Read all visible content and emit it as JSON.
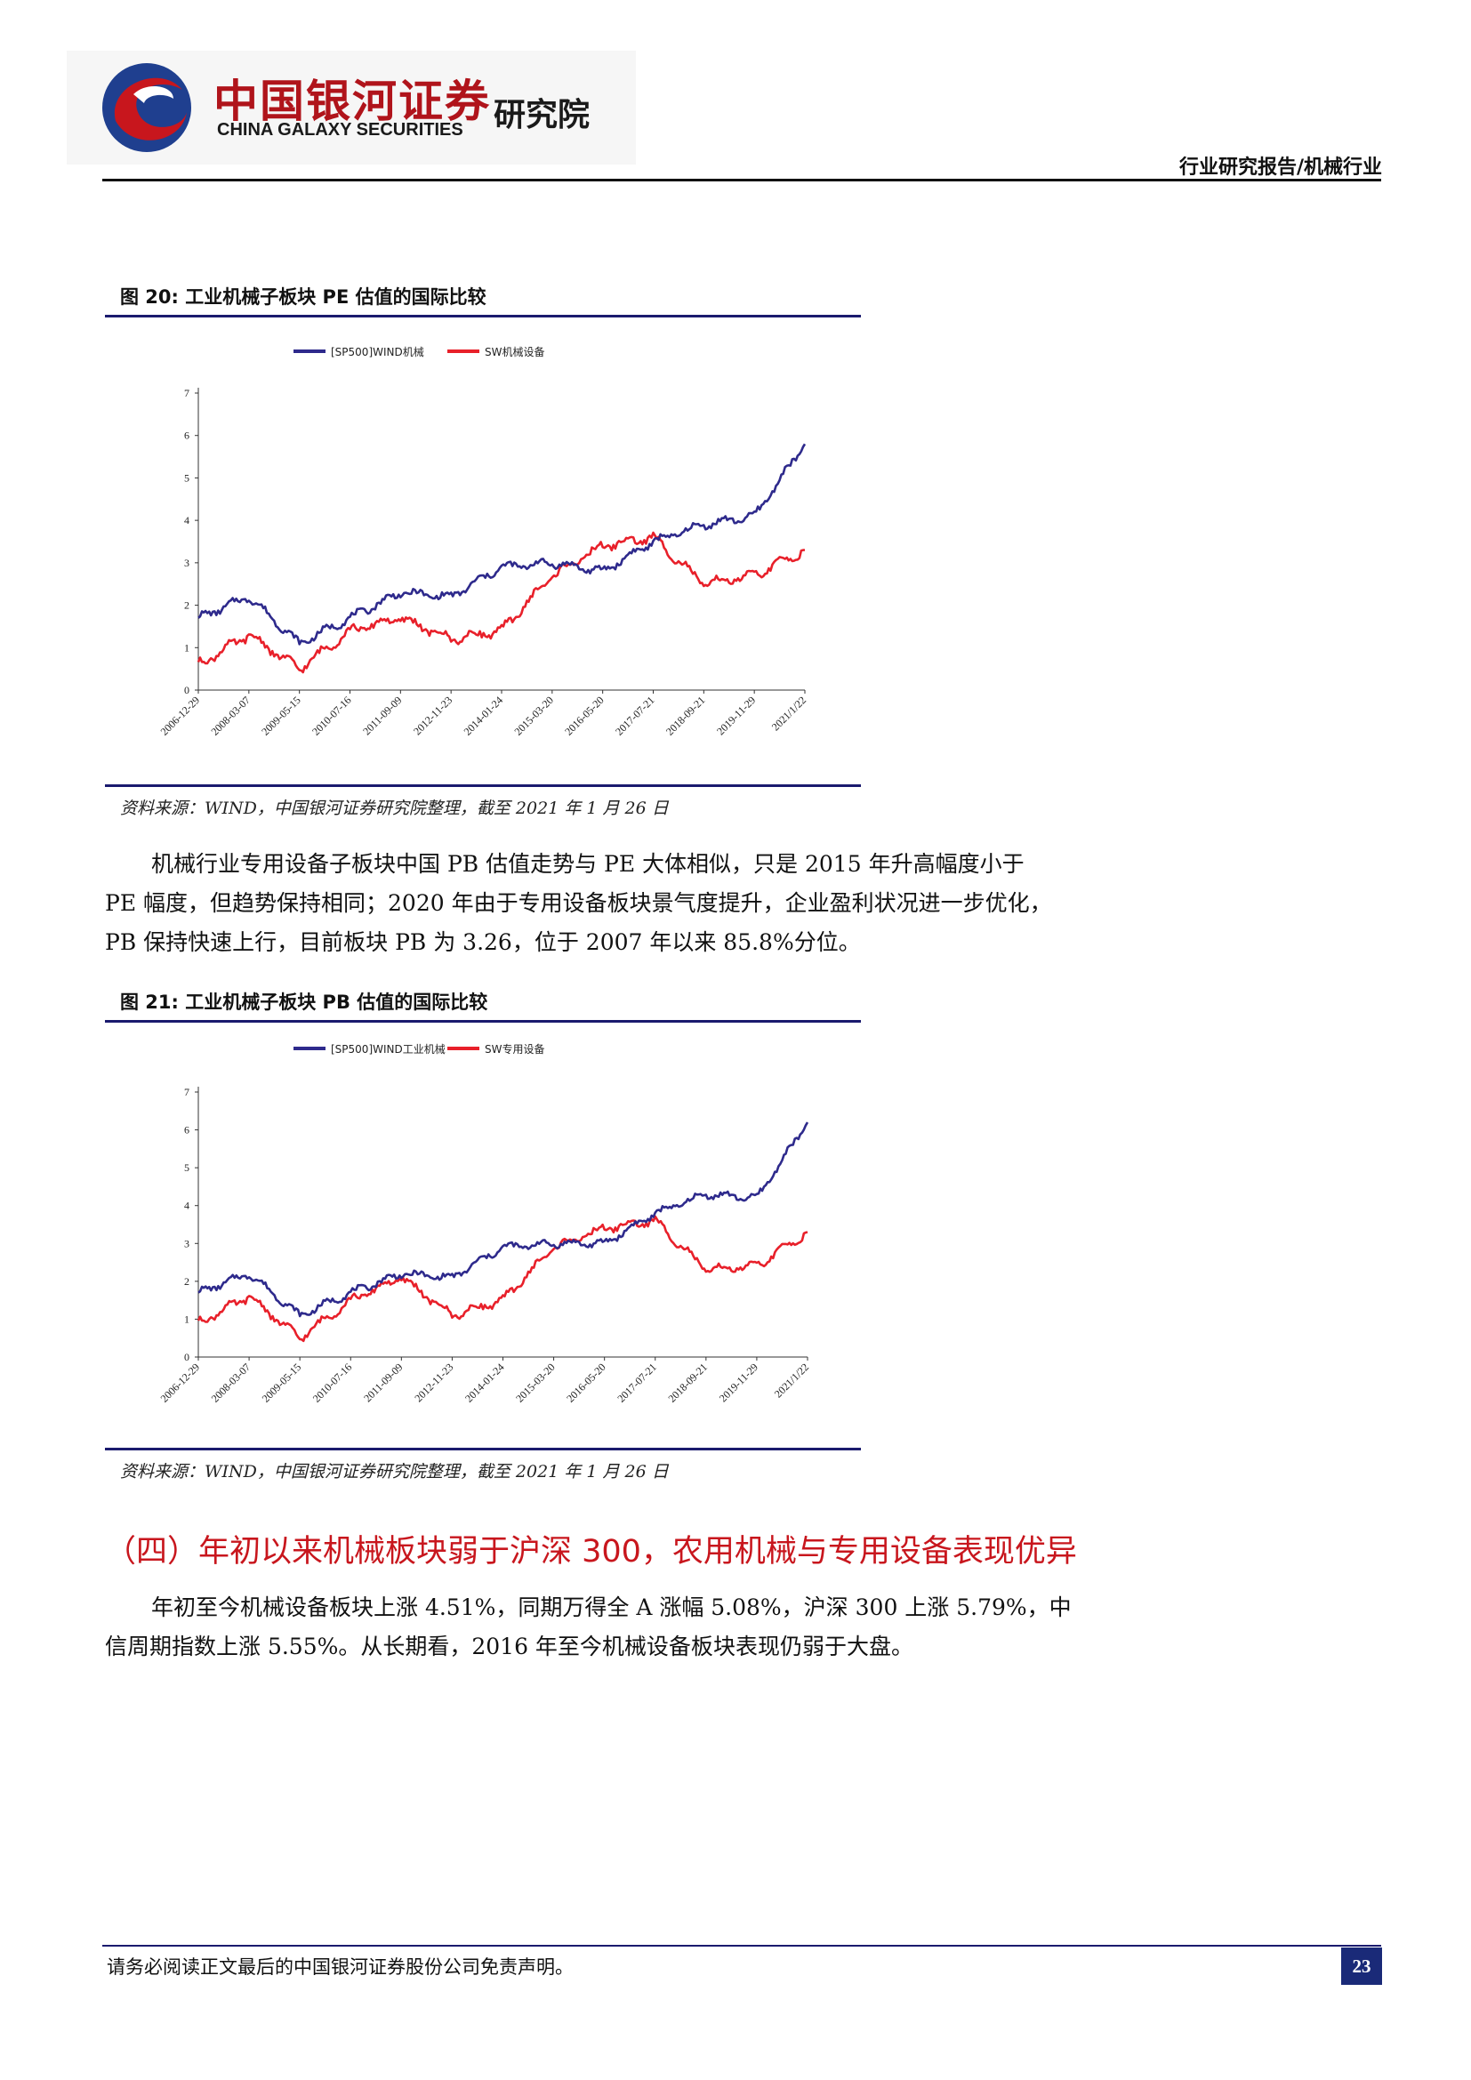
{
  "header": {
    "logo_cn": "中国银河证券",
    "logo_en": "CHINA GALAXY SECURITIES",
    "logo_institute": "研究院",
    "report_type": "行业研究报告/机械行业"
  },
  "figure20": {
    "title": "图 20:  工业机械子板块 PE 估值的国际比较",
    "source": "资料来源：WIND，中国银河证券研究院整理，截至 2021 年 1 月 26 日"
  },
  "paragraph1": {
    "lines": [
      "机械行业专用设备子板块中国 PB 估值走势与 PE 大体相似，只是 2015 年升高幅度小于",
      "PE 幅度，但趋势保持相同；2020 年由于专用设备板块景气度提升，企业盈利状况进一步优化，",
      "PB 保持快速上行，目前板块 PB 为 3.26，位于 2007 年以来 85.8%分位。"
    ]
  },
  "figure21": {
    "title": "图 21:  工业机械子板块 PB 估值的国际比较",
    "source": "资料来源：WIND，中国银河证券研究院整理，截至 2021 年 1 月 26 日"
  },
  "section4": {
    "heading": "（四）年初以来机械板块弱于沪深 300，农用机械与专用设备表现优异",
    "lines": [
      "年初至今机械设备板块上涨 4.51%，同期万得全 A 涨幅 5.08%，沪深 300 上涨 5.79%，中",
      "信周期指数上涨 5.55%。从长期看，2016 年至今机械设备板块表现仍弱于大盘。"
    ]
  },
  "footer": {
    "note": "请务必阅读正文最后的中国银河证券股份公司免责声明。",
    "page_number": "23"
  },
  "chart_data": [
    {
      "type": "line",
      "title": "",
      "x": [
        "2006-12-29",
        "2008-03-07",
        "2009-05-15",
        "2010-07-16",
        "2011-09-09",
        "2012-11-23",
        "2014-01-24",
        "2015-03-20",
        "2016-05-20",
        "2017-07-21",
        "2018-09-21",
        "2019-11-29",
        "2021/1/22"
      ],
      "ylim": [
        0,
        7
      ],
      "yticks": [
        "0",
        "1",
        "2",
        "3",
        "4",
        "5",
        "6",
        "7"
      ],
      "legend_position": "top",
      "series": [
        {
          "name": "[SP500]WIND机械",
          "color": "#2e2a8c",
          "values": [
            1.7,
            2.2,
            1.1,
            1.7,
            2.3,
            2.2,
            2.9,
            3.0,
            2.8,
            3.5,
            3.9,
            4.1,
            5.8
          ]
        },
        {
          "name": "SW机械设备",
          "color": "#e8202a",
          "values": [
            0.6,
            1.3,
            0.5,
            1.4,
            1.7,
            1.2,
            1.4,
            2.7,
            3.4,
            3.6,
            2.5,
            2.7,
            3.3
          ]
        }
      ]
    },
    {
      "type": "line",
      "title": "",
      "x": [
        "2006-12-29",
        "2008-03-07",
        "2009-05-15",
        "2010-07-16",
        "2011-09-09",
        "2012-11-23",
        "2014-01-24",
        "2015-03-20",
        "2016-05-20",
        "2017-07-21",
        "2018-09-21",
        "2019-11-29",
        "2021/1/22"
      ],
      "ylim": [
        0,
        7
      ],
      "yticks": [
        "0",
        "1",
        "2",
        "3",
        "4",
        "5",
        "6",
        "7"
      ],
      "legend_position": "top",
      "series": [
        {
          "name": "[SP500]WIND工业机械",
          "color": "#2e2a8c",
          "values": [
            1.7,
            2.2,
            1.1,
            1.7,
            2.2,
            2.1,
            2.9,
            3.0,
            3.0,
            3.8,
            4.3,
            4.2,
            6.2
          ]
        },
        {
          "name": "SW专用设备",
          "color": "#e8202a",
          "values": [
            0.9,
            1.6,
            0.5,
            1.5,
            2.1,
            1.1,
            1.5,
            2.9,
            3.4,
            3.6,
            2.3,
            2.4,
            3.3
          ]
        }
      ]
    }
  ]
}
